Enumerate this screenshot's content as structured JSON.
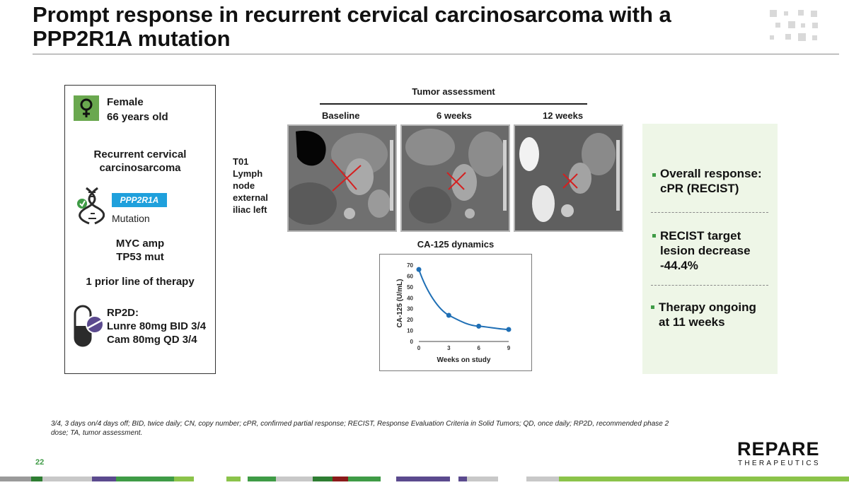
{
  "title": "Prompt response in recurrent cervical carcinosarcoma with a PPP2R1A mutation",
  "patient": {
    "sex": "Female",
    "age": "66 years old",
    "diagnosis_line1": "Recurrent cervical",
    "diagnosis_line2": "carcinosarcoma",
    "gene": "PPP2R1A",
    "mutation_label": "Mutation",
    "marker1": "MYC amp",
    "marker2": "TP53 mut",
    "prior_therapy": "1 prior line of therapy",
    "rp2d_label": "RP2D:",
    "rp2d_drug1": "Lunre 80mg BID 3/4",
    "rp2d_drug2": "Cam 80mg QD 3/4",
    "icons": [
      "female-symbol-icon",
      "dna-icon",
      "pill-icon"
    ]
  },
  "tumor_assessment": {
    "title": "Tumor assessment",
    "timepoints": [
      "Baseline",
      "6 weeks",
      "12 weeks"
    ],
    "lesion_lines": [
      "T01",
      "Lymph",
      "node",
      "external",
      "iliac left"
    ]
  },
  "chart_data": {
    "type": "line",
    "title": "CA-125 dynamics",
    "xlabel": "Weeks on study",
    "ylabel": "CA-125 (U/mL)",
    "x": [
      0,
      3,
      6,
      9
    ],
    "y": [
      66,
      24,
      14,
      11
    ],
    "xticks": [
      0,
      3,
      6,
      9
    ],
    "yticks": [
      0,
      10,
      20,
      30,
      40,
      50,
      60,
      70
    ],
    "xlim": [
      0,
      9
    ],
    "ylim": [
      0,
      70
    ],
    "line_color": "#1f6fb5",
    "grid": false
  },
  "response": {
    "item1_line1": "Overall response:",
    "item1_line2": "cPR (RECIST)",
    "item2_line1": "RECIST target",
    "item2_line2": "lesion decrease",
    "item2_line3": "-44.4%",
    "item3_line1": "Therapy ongoing",
    "item3_line2": "at 11 weeks"
  },
  "footnote": "3/4, 3 days on/4 days off; BID, twice daily; CN, copy number; cPR, confirmed partial response; RECIST, Response Evaluation Criteria in Solid Tumors; QD, once daily; RP2D, recommended phase 2 dose; TA, tumor assessment.",
  "page_number": "22",
  "brand": {
    "name": "REPARE",
    "sub": "THERAPEUTICS"
  },
  "colors": {
    "accent_green": "#6aa84f",
    "badge_blue": "#1fa0dc",
    "response_bg": "#eef6e7",
    "purple": "#5b4a8e",
    "dark_red": "#8b1a1a"
  }
}
